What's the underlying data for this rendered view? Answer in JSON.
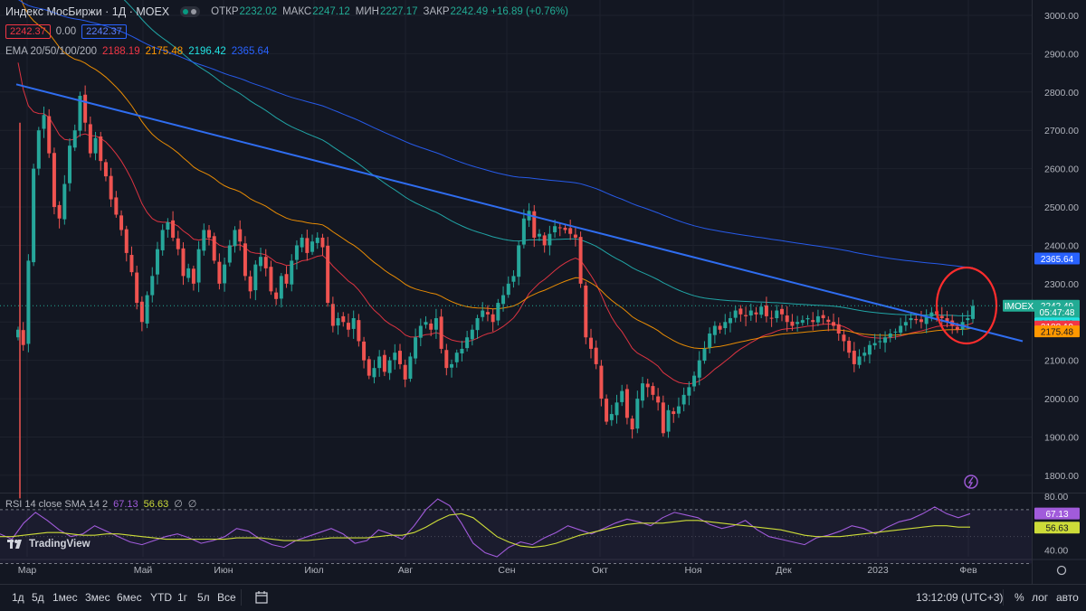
{
  "header": {
    "symbol": "Индекс МосБиржи · 1Д · MOEX",
    "ohlc": [
      {
        "label": "ОТКР",
        "value": "2232.02"
      },
      {
        "label": "МАКС",
        "value": "2247.12"
      },
      {
        "label": "МИН",
        "value": "2227.17"
      },
      {
        "label": "ЗАКР",
        "value": "2242.49 +16.89 (+0.76%)"
      }
    ],
    "bid": "2242.37",
    "spread": "0.00",
    "ask": "2242.37",
    "ema_label": "EMA 20/50/100/200",
    "ema_values": [
      "2188.19",
      "2175.48",
      "2196.42",
      "2365.64"
    ]
  },
  "rsi_legend": {
    "label": "RSI 14 close SMA 14 2",
    "v1": "67.13",
    "v2": "56.63",
    "v3": "∅",
    "v4": "∅"
  },
  "brand": "TradingView",
  "colors": {
    "bg": "#131722",
    "up": "#26a69a",
    "down": "#ef5350",
    "ema20": "#f23645",
    "ema50": "#ff9800",
    "ema100": "#22b4b4",
    "ema200": "#2962ff",
    "trend": "#2f6df0",
    "rsi": "#a15bdb",
    "rsi_sma": "#cddc39",
    "circle": "#ff2d2d"
  },
  "chart_data": [
    {
      "type": "candlestick",
      "title": "Индекс МосБиржи · 1Д · MOEX",
      "ylim": [
        1755,
        3040
      ],
      "yticks": [
        "3000.00",
        "2900.00",
        "2800.00",
        "2700.00",
        "2600.00",
        "2500.00",
        "2400.00",
        "2300.00",
        "2200.00",
        "2100.00",
        "2000.00",
        "1900.00",
        "1800.00"
      ],
      "x_labels": [
        "Мар",
        "Май",
        "Июн",
        "Июл",
        "Авг",
        "Сен",
        "Окт",
        "Ноя",
        "Дек",
        "2023",
        "Фев"
      ],
      "price_labels": [
        {
          "text": "2365.64",
          "value": 2365.64,
          "color": "#2962ff"
        },
        {
          "text": "IMOEX",
          "value": 2242.49,
          "color": "#22ab94"
        },
        {
          "text": "2242.49",
          "value": 2242.49,
          "color": "#22ab94"
        },
        {
          "text": "05:47:48",
          "value": 2226,
          "color": "#22ab94"
        },
        {
          "text": "2196.42",
          "value": 2196.42,
          "color": "#22e2e2"
        },
        {
          "text": "2188.19",
          "value": 2188.19,
          "color": "#f23645"
        },
        {
          "text": "2175.48",
          "value": 2175.48,
          "color": "#ff9800"
        }
      ],
      "close_series": [
        2180,
        2140,
        2360,
        2600,
        2700,
        2740,
        2640,
        2500,
        2470,
        2560,
        2660,
        2700,
        2790,
        2720,
        2640,
        2680,
        2620,
        2580,
        2520,
        2480,
        2440,
        2380,
        2330,
        2250,
        2200,
        2270,
        2320,
        2390,
        2440,
        2460,
        2420,
        2390,
        2320,
        2340,
        2300,
        2390,
        2440,
        2420,
        2360,
        2300,
        2350,
        2400,
        2440,
        2410,
        2320,
        2280,
        2350,
        2370,
        2340,
        2280,
        2260,
        2320,
        2300,
        2360,
        2400,
        2420,
        2380,
        2410,
        2420,
        2395,
        2250,
        2190,
        2210,
        2200,
        2180,
        2210,
        2150,
        2100,
        2060,
        2080,
        2110,
        2070,
        2100,
        2120,
        2090,
        2050,
        2110,
        2160,
        2190,
        2200,
        2180,
        2210,
        2130,
        2080,
        2090,
        2120,
        2130,
        2160,
        2180,
        2210,
        2230,
        2220,
        2200,
        2250,
        2270,
        2300,
        2320,
        2400,
        2470,
        2490,
        2420,
        2430,
        2400,
        2430,
        2450,
        2445,
        2440,
        2430,
        2420,
        2300,
        2160,
        2130,
        2090,
        2000,
        1940,
        1960,
        1990,
        2020,
        1950,
        1920,
        2000,
        2040,
        2030,
        2010,
        1990,
        1910,
        1970,
        1960,
        1980,
        2010,
        2030,
        2060,
        2100,
        2130,
        2170,
        2190,
        2180,
        2200,
        2210,
        2230,
        2220,
        2215,
        2230,
        2220,
        2240,
        2215,
        2210,
        2230,
        2220,
        2200,
        2190,
        2200,
        2205,
        2210,
        2200,
        2215,
        2210,
        2200,
        2190,
        2170,
        2150,
        2120,
        2090,
        2110,
        2120,
        2140,
        2145,
        2150,
        2160,
        2170,
        2175,
        2190,
        2200,
        2210,
        2205,
        2200,
        2215,
        2225,
        2220,
        2210,
        2200,
        2190,
        2180,
        2200,
        2210,
        2242
      ],
      "trendline": {
        "from": {
          "bar": 0,
          "value": 2820
        },
        "to": {
          "bar": 186,
          "value": 2150
        }
      }
    },
    {
      "type": "line",
      "title": "RSI 14 close SMA 14 2",
      "ylim": [
        35,
        82
      ],
      "yticks": [
        "80.00",
        "67.13",
        "56.63",
        "40.00"
      ],
      "bands": [
        70,
        30
      ],
      "series": [
        {
          "name": "RSI",
          "values": [
            52,
            48,
            60,
            68,
            62,
            55,
            50,
            52,
            58,
            54,
            50,
            46,
            44,
            47,
            50,
            52,
            49,
            45,
            47,
            50,
            56,
            54,
            48,
            44,
            42,
            47,
            50,
            53,
            56,
            52,
            45,
            47,
            55,
            52,
            48,
            58,
            70,
            78,
            73,
            60,
            45,
            38,
            35,
            42,
            46,
            44,
            49,
            53,
            58,
            55,
            52,
            56,
            60,
            63,
            61,
            58,
            64,
            68,
            66,
            64,
            59,
            56,
            58,
            62,
            55,
            50,
            48,
            46,
            44,
            49,
            51,
            54,
            58,
            56,
            52,
            57,
            61,
            63,
            67,
            72,
            67,
            64,
            67
          ]
        },
        {
          "name": "SMA",
          "values": [
            50,
            50,
            51,
            52,
            53,
            53,
            52,
            51,
            51,
            52,
            52,
            51,
            50,
            49,
            48,
            48,
            48,
            48,
            48,
            48,
            49,
            49,
            49,
            48,
            47,
            47,
            47,
            48,
            49,
            49,
            49,
            49,
            50,
            51,
            51,
            53,
            57,
            62,
            66,
            67,
            64,
            57,
            50,
            46,
            43,
            42,
            43,
            45,
            48,
            51,
            53,
            55,
            57,
            59,
            60,
            60,
            60,
            61,
            62,
            62,
            61,
            60,
            59,
            58,
            57,
            56,
            55,
            53,
            51,
            50,
            50,
            50,
            51,
            52,
            53,
            54,
            55,
            56,
            57,
            58,
            58,
            57,
            57
          ]
        }
      ]
    }
  ],
  "bottom": {
    "timeframes": [
      "1д",
      "5д",
      "1мес",
      "3мес",
      "6мес",
      "YTD",
      "1г",
      "5л",
      "Все"
    ],
    "clock": "13:12:09 (UTC+3)",
    "pct": "%",
    "log": "лог",
    "auto": "авто"
  }
}
